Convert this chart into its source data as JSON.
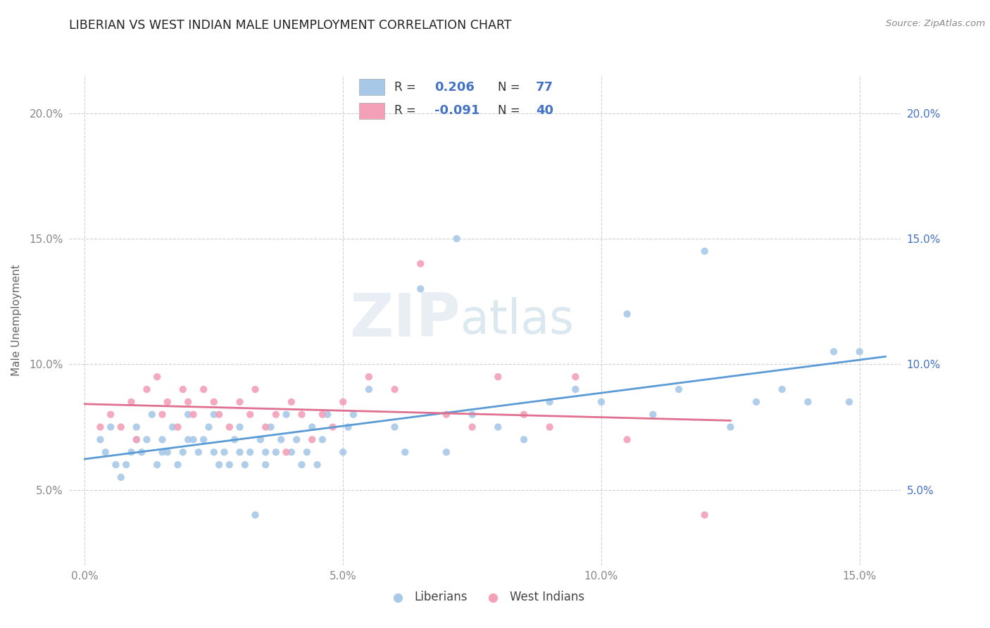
{
  "title": "LIBERIAN VS WEST INDIAN MALE UNEMPLOYMENT CORRELATION CHART",
  "source_text": "Source: ZipAtlas.com",
  "ylabel": "Male Unemployment",
  "xlim": [
    -0.003,
    0.158
  ],
  "ylim": [
    0.02,
    0.215
  ],
  "xtick_vals": [
    0.0,
    0.05,
    0.1,
    0.15
  ],
  "xtick_labels": [
    "0.0%",
    "5.0%",
    "10.0%",
    "15.0%"
  ],
  "ytick_vals": [
    0.05,
    0.1,
    0.15,
    0.2
  ],
  "ytick_labels": [
    "5.0%",
    "10.0%",
    "15.0%",
    "20.0%"
  ],
  "liberian_color": "#a8c8e8",
  "west_indian_color": "#f4a0b8",
  "liberian_R": 0.206,
  "liberian_N": 77,
  "west_indian_R": -0.091,
  "west_indian_N": 40,
  "liberian_line_color": "#5b9bd5",
  "west_indian_line_color": "#e07090",
  "legend_R_color": "#4472c4",
  "legend_N_color": "#4472c4",
  "legend_text_color": "#333333",
  "right_tick_color": "#4472c4",
  "watermark_zip": "ZIP",
  "watermark_atlas": "atlas",
  "background_color": "#ffffff",
  "grid_color": "#d0d0d0",
  "tick_label_color": "#888888",
  "liberian_x": [
    0.003,
    0.004,
    0.005,
    0.006,
    0.007,
    0.008,
    0.009,
    0.01,
    0.01,
    0.011,
    0.012,
    0.013,
    0.014,
    0.015,
    0.015,
    0.016,
    0.017,
    0.018,
    0.019,
    0.02,
    0.02,
    0.021,
    0.022,
    0.023,
    0.024,
    0.025,
    0.025,
    0.026,
    0.027,
    0.028,
    0.029,
    0.03,
    0.03,
    0.031,
    0.032,
    0.033,
    0.034,
    0.035,
    0.035,
    0.036,
    0.037,
    0.038,
    0.039,
    0.04,
    0.041,
    0.042,
    0.043,
    0.044,
    0.045,
    0.046,
    0.047,
    0.05,
    0.051,
    0.052,
    0.055,
    0.06,
    0.062,
    0.065,
    0.07,
    0.072,
    0.075,
    0.08,
    0.085,
    0.09,
    0.095,
    0.1,
    0.105,
    0.11,
    0.115,
    0.12,
    0.125,
    0.13,
    0.135,
    0.14,
    0.145,
    0.148,
    0.15
  ],
  "liberian_y": [
    0.07,
    0.065,
    0.075,
    0.06,
    0.055,
    0.06,
    0.065,
    0.07,
    0.075,
    0.065,
    0.07,
    0.08,
    0.06,
    0.065,
    0.07,
    0.065,
    0.075,
    0.06,
    0.065,
    0.07,
    0.08,
    0.07,
    0.065,
    0.07,
    0.075,
    0.065,
    0.08,
    0.06,
    0.065,
    0.06,
    0.07,
    0.065,
    0.075,
    0.06,
    0.065,
    0.04,
    0.07,
    0.065,
    0.06,
    0.075,
    0.065,
    0.07,
    0.08,
    0.065,
    0.07,
    0.06,
    0.065,
    0.075,
    0.06,
    0.07,
    0.08,
    0.065,
    0.075,
    0.08,
    0.09,
    0.075,
    0.065,
    0.13,
    0.065,
    0.15,
    0.08,
    0.075,
    0.07,
    0.085,
    0.09,
    0.085,
    0.12,
    0.08,
    0.09,
    0.145,
    0.075,
    0.085,
    0.09,
    0.085,
    0.105,
    0.085,
    0.105
  ],
  "west_indian_x": [
    0.003,
    0.005,
    0.007,
    0.009,
    0.01,
    0.012,
    0.014,
    0.015,
    0.016,
    0.018,
    0.019,
    0.02,
    0.021,
    0.023,
    0.025,
    0.026,
    0.028,
    0.03,
    0.032,
    0.033,
    0.035,
    0.037,
    0.039,
    0.04,
    0.042,
    0.044,
    0.046,
    0.048,
    0.05,
    0.055,
    0.06,
    0.065,
    0.07,
    0.075,
    0.08,
    0.085,
    0.09,
    0.095,
    0.105,
    0.12
  ],
  "west_indian_y": [
    0.075,
    0.08,
    0.075,
    0.085,
    0.07,
    0.09,
    0.095,
    0.08,
    0.085,
    0.075,
    0.09,
    0.085,
    0.08,
    0.09,
    0.085,
    0.08,
    0.075,
    0.085,
    0.08,
    0.09,
    0.075,
    0.08,
    0.065,
    0.085,
    0.08,
    0.07,
    0.08,
    0.075,
    0.085,
    0.095,
    0.09,
    0.14,
    0.08,
    0.075,
    0.095,
    0.08,
    0.075,
    0.095,
    0.07,
    0.04
  ]
}
